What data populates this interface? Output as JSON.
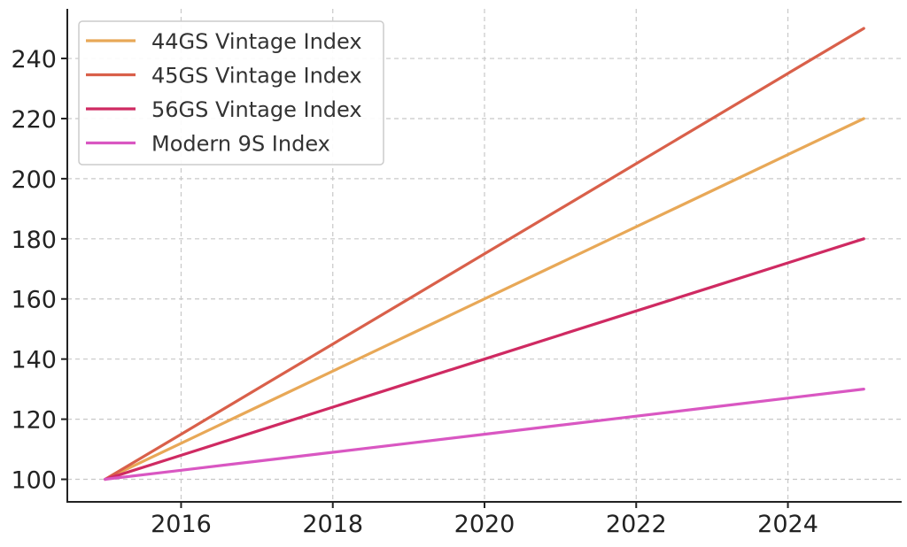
{
  "chart_data": {
    "type": "line",
    "title": "",
    "xlabel": "",
    "ylabel": "",
    "x": [
      2015,
      2016,
      2017,
      2018,
      2019,
      2020,
      2021,
      2022,
      2023,
      2024,
      2025
    ],
    "xlim": [
      2014.5,
      2025.5
    ],
    "ylim": [
      92.5,
      256.5
    ],
    "xticks": [
      "2016",
      "2018",
      "2020",
      "2022",
      "2024"
    ],
    "yticks": [
      "100",
      "120",
      "140",
      "160",
      "180",
      "200",
      "220",
      "240"
    ],
    "grid": true,
    "legend_position": "top-left",
    "series": [
      {
        "name": "44GS Vintage Index",
        "color": "#E8A857",
        "values": [
          100,
          112,
          124,
          136,
          148,
          160,
          172,
          184,
          196,
          208,
          220
        ]
      },
      {
        "name": "45GS Vintage Index",
        "color": "#D9604A",
        "values": [
          100,
          115,
          130,
          145,
          160,
          175,
          190,
          205,
          220,
          235,
          250
        ]
      },
      {
        "name": "56GS Vintage Index",
        "color": "#CF2A62",
        "values": [
          100,
          108,
          116,
          124,
          132,
          140,
          148,
          156,
          164,
          172,
          180
        ]
      },
      {
        "name": "Modern 9S Index",
        "color": "#D957C2",
        "values": [
          100,
          103,
          106,
          109,
          112,
          115,
          118,
          121,
          124,
          127,
          130
        ]
      }
    ]
  }
}
